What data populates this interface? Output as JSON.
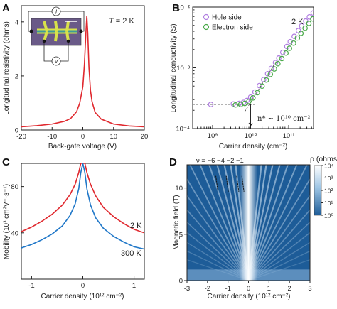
{
  "panels": {
    "A": {
      "letter": "A",
      "annotation": "T = 2 K",
      "annotation_italic": "T",
      "annotation_rest": " = 2 K",
      "inset_labels": {
        "current": "I",
        "voltage": "V"
      }
    },
    "B": {
      "letter": "B",
      "annotation": "2 K",
      "nstar_label": "n* ~ 10¹⁰ cm⁻²"
    },
    "C": {
      "letter": "C",
      "annotations": [
        "2 K",
        "300 K"
      ]
    },
    "D": {
      "letter": "D",
      "filling_label": "ν = −6  −4  −2  −1",
      "colorbar_title": "ρ (ohms)",
      "colorbar_ticks": [
        "10⁴",
        "10³",
        "10²",
        "10¹",
        "10⁰"
      ]
    }
  },
  "colors": {
    "red": "#e0282e",
    "blue": "#1f77c8",
    "hole": "#b07fe0",
    "electron": "#4aaa4a",
    "map_dark": "#1d5c98",
    "map_light": "#ffffff"
  },
  "chart_data": [
    {
      "panel": "A",
      "type": "line",
      "xlabel": "Back-gate voltage (V)",
      "ylabel": "Longitudinal resistivity (ohms)",
      "xlim": [
        -20,
        20
      ],
      "ylim": [
        0,
        4.6
      ],
      "xticks": [
        "-20",
        "-10",
        "0",
        "10",
        "20"
      ],
      "yticks": [
        "0",
        "2",
        "4"
      ],
      "series": [
        {
          "color": "#e0282e",
          "x": [
            -20,
            -15,
            -10,
            -6,
            -4,
            -2,
            -1,
            0,
            0.5,
            1,
            1.3,
            1.6,
            2,
            2.5,
            3,
            4,
            6,
            10,
            15,
            20
          ],
          "y": [
            0.12,
            0.16,
            0.22,
            0.32,
            0.42,
            0.68,
            1.0,
            1.6,
            2.4,
            3.6,
            4.22,
            3.6,
            2.3,
            1.45,
            1.05,
            0.65,
            0.4,
            0.22,
            0.15,
            0.12
          ]
        }
      ]
    },
    {
      "panel": "B",
      "type": "scatter",
      "xlabel": "Carrier density (cm⁻²)",
      "ylabel": "Longitudinal conductivity (S)",
      "xscale": "log",
      "yscale": "log",
      "xlim": [
        300000000.0,
        450000000000.0
      ],
      "ylim": [
        0.0001,
        0.01
      ],
      "xticks": [
        "10⁹",
        "10¹⁰",
        "10¹¹"
      ],
      "yticks": [
        "10⁻⁴",
        "10⁻³",
        "10⁻²"
      ],
      "legend": "top-left",
      "series": [
        {
          "name": "Hole side",
          "color": "#b07fe0",
          "x": [
            900000000.0,
            3500000000.0,
            5000000000.0,
            6500000000.0,
            8000000000.0,
            10000000000.0,
            13000000000.0,
            17000000000.0,
            22000000000.0,
            28000000000.0,
            35000000000.0,
            45000000000.0,
            55000000000.0,
            70000000000.0,
            90000000000.0,
            110000000000.0,
            140000000000.0,
            180000000000.0,
            220000000000.0,
            280000000000.0,
            350000000000.0,
            440000000000.0
          ],
          "y": [
            0.00025,
            0.000255,
            0.00026,
            0.00027,
            0.00029,
            0.00033,
            0.0004,
            0.00051,
            0.00064,
            0.0008,
            0.00098,
            0.00122,
            0.00145,
            0.0018,
            0.00225,
            0.0027,
            0.0033,
            0.0041,
            0.0049,
            0.0059,
            0.0069,
            0.008
          ]
        },
        {
          "name": "Electron side",
          "color": "#4aaa4a",
          "x": [
            4000000000.0,
            5500000000.0,
            7000000000.0,
            9000000000.0,
            11500000000.0,
            15000000000.0,
            20000000000.0,
            26000000000.0,
            33000000000.0,
            42000000000.0,
            52000000000.0,
            66000000000.0,
            85000000000.0,
            105000000000.0,
            135000000000.0,
            170000000000.0,
            210000000000.0,
            270000000000.0,
            340000000000.0,
            430000000000.0
          ],
          "y": [
            0.000245,
            0.00025,
            0.00026,
            0.00028,
            0.00032,
            0.00039,
            0.0005,
            0.00063,
            0.00078,
            0.00096,
            0.00117,
            0.00142,
            0.00175,
            0.0021,
            0.00255,
            0.0031,
            0.0037,
            0.0045,
            0.0054,
            0.0064
          ]
        }
      ]
    },
    {
      "panel": "C",
      "type": "line",
      "xlabel": "Carrier density (10¹² cm⁻²)",
      "ylabel": "Mobility (10³ cm²V⁻¹s⁻¹)",
      "xlim": [
        -1.2,
        1.2
      ],
      "ylim": [
        0,
        100
      ],
      "xticks": [
        "-1",
        "0",
        "1"
      ],
      "yticks": [
        "40",
        "80"
      ],
      "series": [
        {
          "name": "2 K",
          "color": "#e0282e",
          "x": [
            -1.2,
            -1.0,
            -0.8,
            -0.6,
            -0.4,
            -0.25,
            -0.15,
            -0.08,
            -0.04,
            0,
            0.04,
            0.08,
            0.15,
            0.25,
            0.4,
            0.6,
            0.8,
            1.0,
            1.2
          ],
          "y": [
            41,
            45,
            50,
            56,
            64,
            73,
            82,
            92,
            100,
            100,
            100,
            92,
            82,
            72,
            62,
            54,
            48,
            43,
            40
          ]
        },
        {
          "name": "300 K",
          "color": "#1f77c8",
          "x": [
            -1.2,
            -1.0,
            -0.8,
            -0.6,
            -0.4,
            -0.25,
            -0.15,
            -0.08,
            -0.04,
            0,
            0.04,
            0.08,
            0.15,
            0.25,
            0.4,
            0.6,
            0.8,
            1.0,
            1.2
          ],
          "y": [
            27,
            30,
            34,
            39,
            46,
            55,
            65,
            78,
            92,
            100,
            92,
            78,
            64,
            53,
            44,
            37,
            32,
            28,
            26
          ]
        }
      ]
    },
    {
      "panel": "D",
      "type": "heatmap",
      "xlabel": "Carrier density (10¹² cm⁻²)",
      "ylabel": "Magnetic field (T)",
      "xlim": [
        -3,
        3
      ],
      "ylim": [
        0,
        12.5
      ],
      "xticks": [
        "-3",
        "-2",
        "-1",
        "0",
        "1",
        "2",
        "3"
      ],
      "yticks": [
        "0",
        "5",
        "10"
      ],
      "filling_factors": [
        -6,
        -4,
        -2,
        -1
      ],
      "colorbar": {
        "title": "ρ (ohms)",
        "range": [
          1,
          10000
        ],
        "scale": "log"
      }
    }
  ]
}
